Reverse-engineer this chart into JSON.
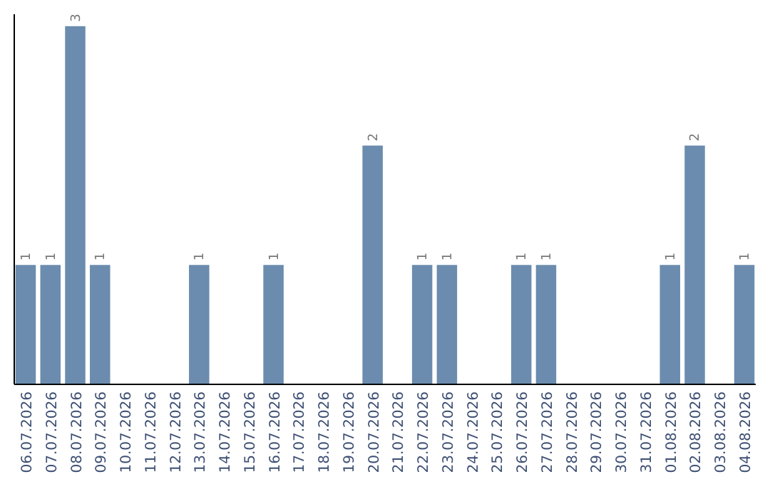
{
  "chart_data": {
    "type": "bar",
    "categories": [
      "06.07.2026",
      "07.07.2026",
      "08.07.2026",
      "09.07.2026",
      "10.07.2026",
      "11.07.2026",
      "12.07.2026",
      "13.07.2026",
      "14.07.2026",
      "15.07.2026",
      "16.07.2026",
      "17.07.2026",
      "18.07.2026",
      "19.07.2026",
      "20.07.2026",
      "21.07.2026",
      "22.07.2026",
      "23.07.2026",
      "24.07.2026",
      "25.07.2026",
      "26.07.2026",
      "27.07.2026",
      "28.07.2026",
      "29.07.2026",
      "30.07.2026",
      "31.07.2026",
      "01.08.2026",
      "02.08.2026",
      "03.08.2026",
      "04.08.2026"
    ],
    "values": [
      1,
      1,
      3,
      1,
      0,
      0,
      0,
      1,
      0,
      0,
      1,
      0,
      0,
      0,
      2,
      0,
      1,
      1,
      0,
      0,
      1,
      1,
      0,
      0,
      0,
      0,
      1,
      2,
      0,
      1
    ],
    "value_labels": [
      "1",
      "1",
      "3",
      "1",
      null,
      null,
      null,
      "1",
      null,
      null,
      "1",
      null,
      null,
      null,
      "2",
      null,
      "1",
      "1",
      null,
      null,
      "1",
      "1",
      null,
      null,
      null,
      null,
      "1",
      "2",
      null,
      "1"
    ],
    "color": "#6b8cae",
    "ylim": [
      0,
      3.1
    ],
    "tick_labels": "x"
  }
}
